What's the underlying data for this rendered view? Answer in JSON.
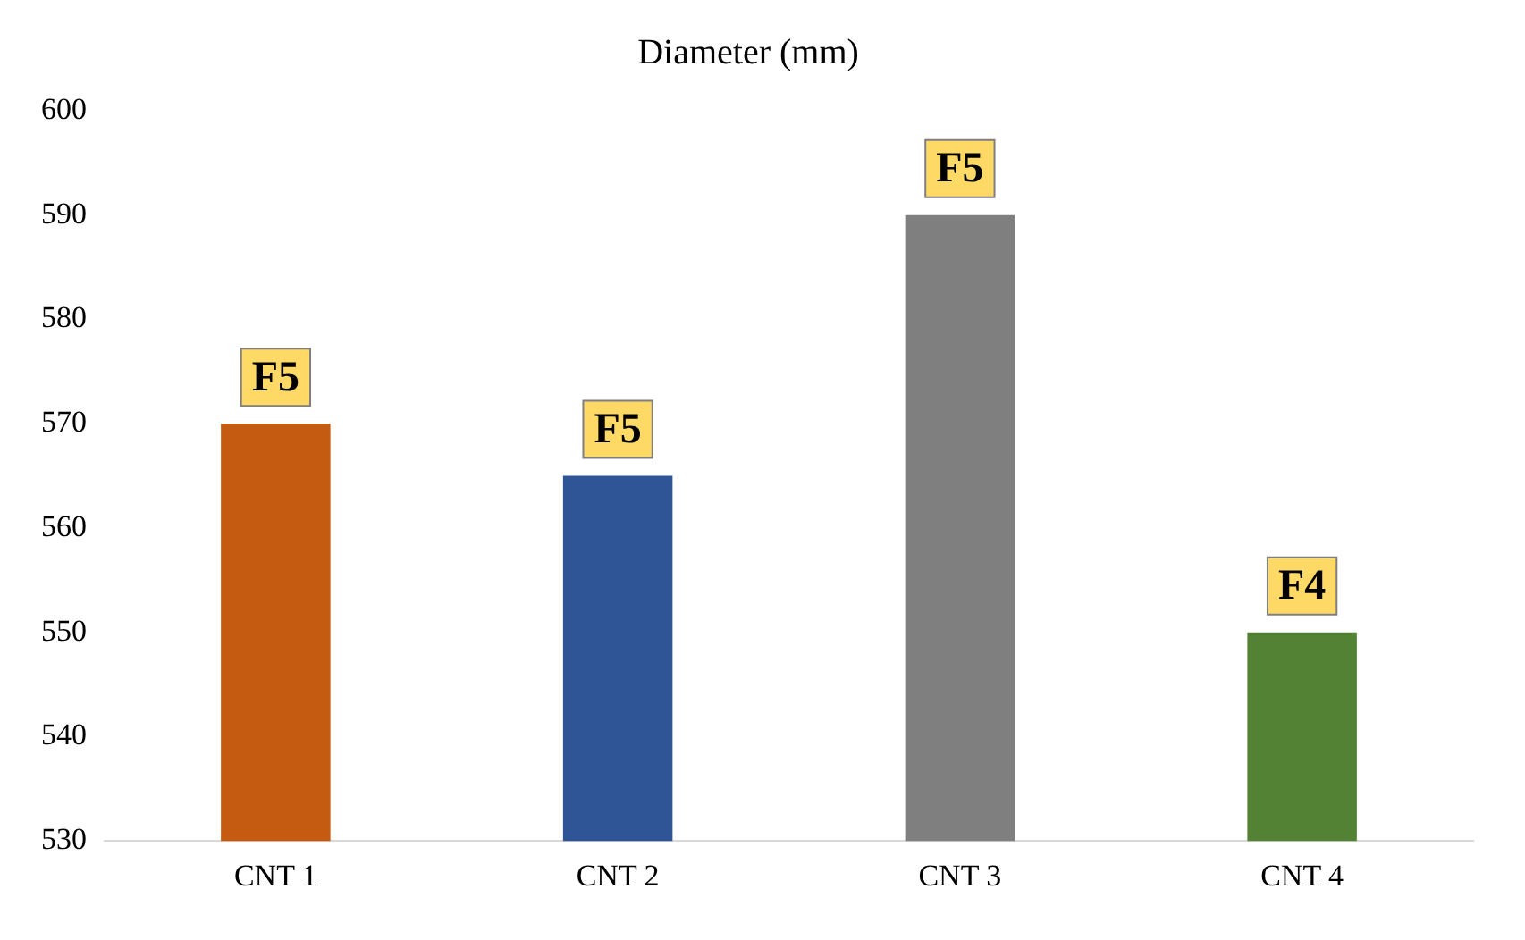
{
  "chart_data": {
    "type": "bar",
    "title": "Diameter (mm)",
    "categories": [
      "CNT 1",
      "CNT 2",
      "CNT 3",
      "CNT 4"
    ],
    "values": [
      570,
      565,
      590,
      550
    ],
    "colors": [
      "#c55a11",
      "#2f5597",
      "#7f7f7f",
      "#548235"
    ],
    "value_labels": [
      "F5",
      "F5",
      "F5",
      "F4"
    ],
    "ylim": [
      530,
      600
    ],
    "yticks": [
      530,
      540,
      550,
      560,
      570,
      580,
      590,
      600
    ],
    "grid": false,
    "legend": false
  }
}
